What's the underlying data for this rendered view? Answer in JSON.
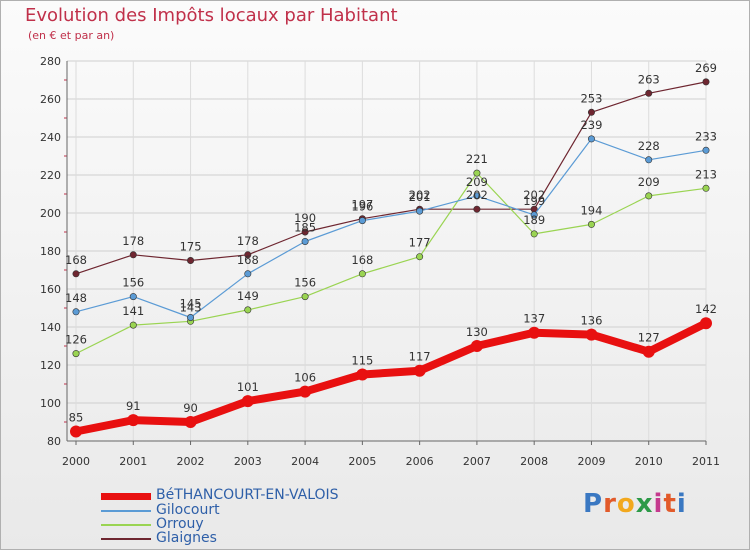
{
  "title": "Evolution des Impôts locaux par Habitant",
  "subtitle": "(en € et par an)",
  "logo": {
    "text": "Proxiti",
    "colors": [
      "#3a78c2",
      "#e25a2a",
      "#f2a81d",
      "#2c9a48",
      "#c53a8e",
      "#e25a2a",
      "#3a78c2"
    ]
  },
  "chart_data": {
    "type": "line",
    "x": [
      "2000",
      "2001",
      "2002",
      "2003",
      "2004",
      "2005",
      "2006",
      "2007",
      "2008",
      "2009",
      "2010",
      "2011"
    ],
    "ylim": [
      80,
      280
    ],
    "yticks": [
      "80",
      "100",
      "120",
      "140",
      "160",
      "180",
      "200",
      "220",
      "240",
      "260",
      "280"
    ],
    "grid": true,
    "legend_position": "bottom-left",
    "series": [
      {
        "name": "BéTHANCOURT-EN-VALOIS",
        "color": "#e81010",
        "values": [
          85,
          91,
          90,
          101,
          106,
          115,
          117,
          130,
          137,
          136,
          127,
          142
        ]
      },
      {
        "name": "Gilocourt",
        "color": "#5b9bd5",
        "values": [
          148,
          156,
          145,
          168,
          185,
          196,
          201,
          209,
          199,
          239,
          228,
          233
        ]
      },
      {
        "name": "Orrouy",
        "color": "#9ad452",
        "values": [
          126,
          141,
          143,
          149,
          156,
          168,
          177,
          221,
          189,
          194,
          209,
          213
        ]
      },
      {
        "name": "Glaignes",
        "color": "#6e2630",
        "values": [
          168,
          178,
          175,
          178,
          190,
          197,
          202,
          202,
          202,
          253,
          263,
          269
        ]
      }
    ],
    "data_labels": [
      {
        "series": 0,
        "labels": [
          "85",
          "91",
          "90",
          "101",
          "106",
          "115",
          "117",
          "130",
          "137",
          "136",
          "127",
          "142"
        ]
      },
      {
        "series": 1,
        "labels": [
          "148",
          "156",
          "145",
          "168",
          "185",
          "196",
          "201",
          "209",
          "199",
          "239",
          "228",
          "233"
        ]
      },
      {
        "series": 2,
        "labels": [
          "126",
          "141",
          "143",
          "149",
          "156",
          "168",
          "177",
          "221",
          "189",
          "194",
          "209",
          "213"
        ]
      },
      {
        "series": 3,
        "labels": [
          "168",
          "178",
          "175",
          "178",
          "190",
          "197",
          "202",
          "202",
          "202",
          "253",
          "263",
          "269"
        ]
      }
    ]
  }
}
